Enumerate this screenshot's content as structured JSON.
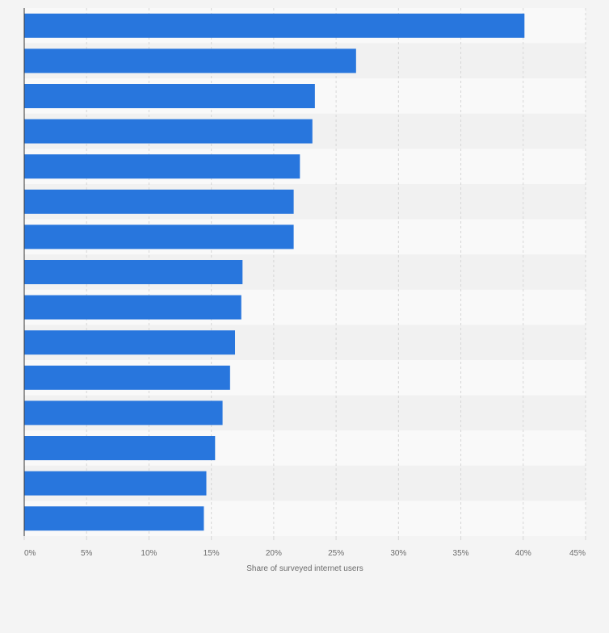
{
  "chart_data": {
    "type": "bar",
    "orientation": "horizontal",
    "categories": [
      "",
      "",
      "",
      "",
      "",
      "",
      "",
      "",
      "",
      "",
      "",
      "",
      "",
      "",
      ""
    ],
    "values": [
      40.1,
      26.6,
      23.3,
      23.1,
      22.1,
      21.6,
      21.6,
      17.5,
      17.4,
      16.9,
      16.5,
      15.9,
      15.3,
      14.6,
      14.4
    ],
    "title": "",
    "xlabel": "Share of surveyed internet users",
    "ylabel": "",
    "xlim": [
      0,
      45
    ],
    "x_ticks": [
      0,
      5,
      10,
      15,
      20,
      25,
      30,
      35,
      40,
      45
    ],
    "x_tick_labels": [
      "0%",
      "5%",
      "10%",
      "15%",
      "20%",
      "25%",
      "30%",
      "35%",
      "40%",
      "45%"
    ],
    "grid": true,
    "legend": "none",
    "colors": {
      "bar": "#2876dd",
      "band_light": "#f9f9f9",
      "band_dark": "#f1f1f1",
      "background": "#f4f4f4",
      "grid": "#d6d6d6",
      "axis": "#333333"
    }
  }
}
